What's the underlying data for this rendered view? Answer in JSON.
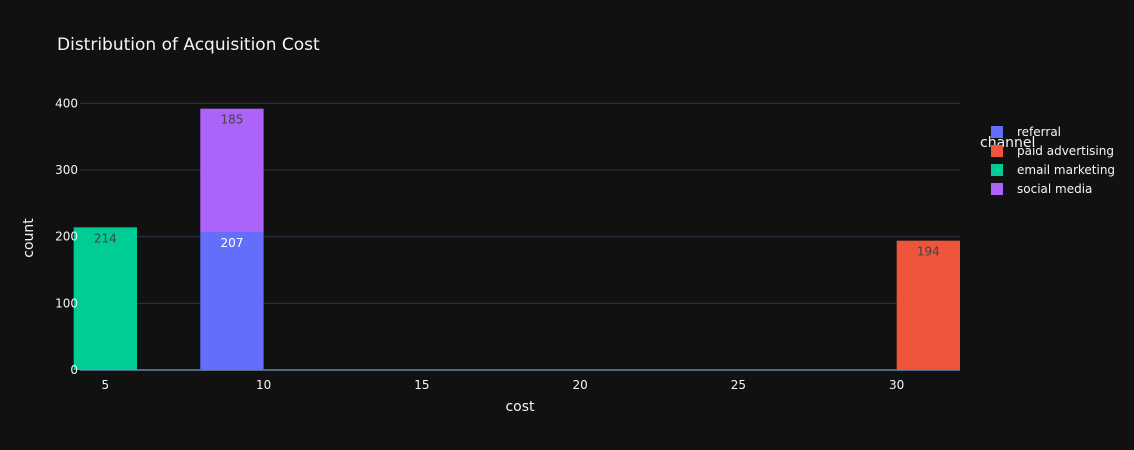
{
  "chart_data": {
    "type": "bar",
    "title": "Distribution of Acquisition Cost",
    "xlabel": "cost",
    "ylabel": "count",
    "xlim": [
      4.2,
      32
    ],
    "ylim": [
      0,
      420
    ],
    "x_ticks": [
      5,
      10,
      15,
      20,
      25,
      30
    ],
    "y_ticks": [
      0,
      100,
      200,
      300,
      400
    ],
    "bar_width": 2,
    "barmode": "stack",
    "grid": true,
    "legend_title": "channel",
    "legend_position": "right",
    "series": [
      {
        "name": "referral",
        "color": "#636efa",
        "label_color": "#ffffff",
        "points": [
          {
            "x": 9,
            "y": 207
          }
        ]
      },
      {
        "name": "paid advertising",
        "color": "#ef553b",
        "label_color": "#444444",
        "points": [
          {
            "x": 31,
            "y": 194
          }
        ]
      },
      {
        "name": "email marketing",
        "color": "#00cc96",
        "label_color": "#444444",
        "points": [
          {
            "x": 5,
            "y": 214
          }
        ]
      },
      {
        "name": "social media",
        "color": "#ab63fa",
        "label_color": "#444444",
        "points": [
          {
            "x": 9,
            "y": 185
          }
        ]
      }
    ]
  }
}
